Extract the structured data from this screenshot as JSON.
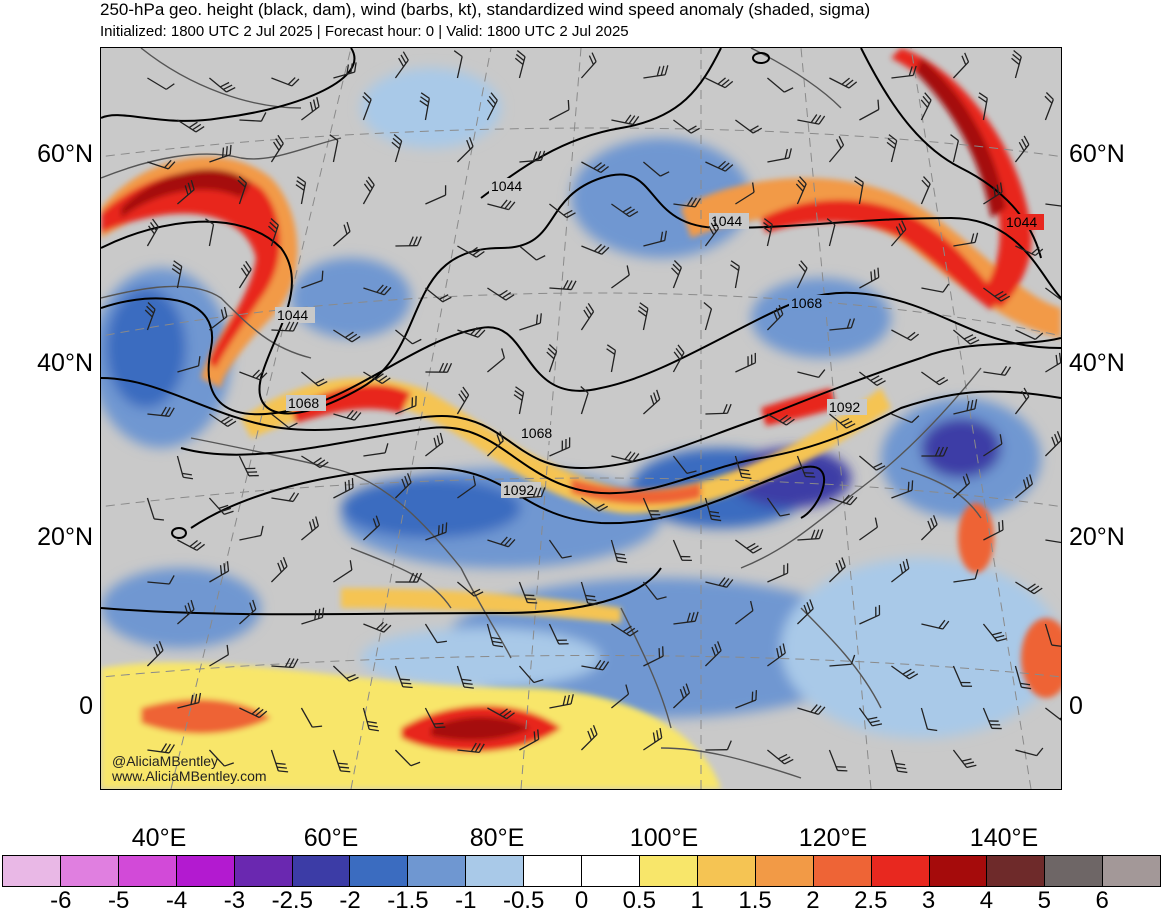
{
  "header": {
    "title": "250-hPa geo. height (black, dam), wind (barbs, kt), standardized wind speed anomaly (shaded, sigma)",
    "subtitle": "Initialized: 1800 UTC 2 Jul 2025 | Forecast hour: 0 | Valid: 1800 UTC 2 Jul 2025"
  },
  "map": {
    "lat_labels": [
      "60°N",
      "40°N",
      "20°N",
      "0"
    ],
    "lon_labels": [
      "40°E",
      "60°E",
      "80°E",
      "100°E",
      "120°E",
      "140°E"
    ],
    "height_contour_labels": [
      "1044",
      "1044",
      "1044",
      "1044",
      "1068",
      "1068",
      "1068",
      "1092",
      "1092"
    ],
    "credit_handle": "@AliciaMBentley",
    "credit_site": "www.AliciaMBentley.com"
  },
  "colorbar": {
    "ticks": [
      "-6",
      "-5",
      "-4",
      "-3",
      "-2.5",
      "-2",
      "-1.5",
      "-1",
      "-0.5",
      "0",
      "0.5",
      "1",
      "1.5",
      "2",
      "2.5",
      "3",
      "4",
      "5",
      "6"
    ],
    "colors": [
      "#e9b8e6",
      "#e07fe0",
      "#d24ad8",
      "#b31ad0",
      "#6a28b0",
      "#3c3ca6",
      "#3b6cc0",
      "#6f97d1",
      "#a9c9e8",
      "#ffffff",
      "#ffffff",
      "#f8e66a",
      "#f5c453",
      "#f29a46",
      "#ee6436",
      "#e8281f",
      "#a50b0b",
      "#6e2a2a",
      "#6e6666",
      "#a39898"
    ]
  },
  "colors": {
    "background_gray": "#c9c9c9",
    "contour": "#000000",
    "coastline": "#555555"
  }
}
